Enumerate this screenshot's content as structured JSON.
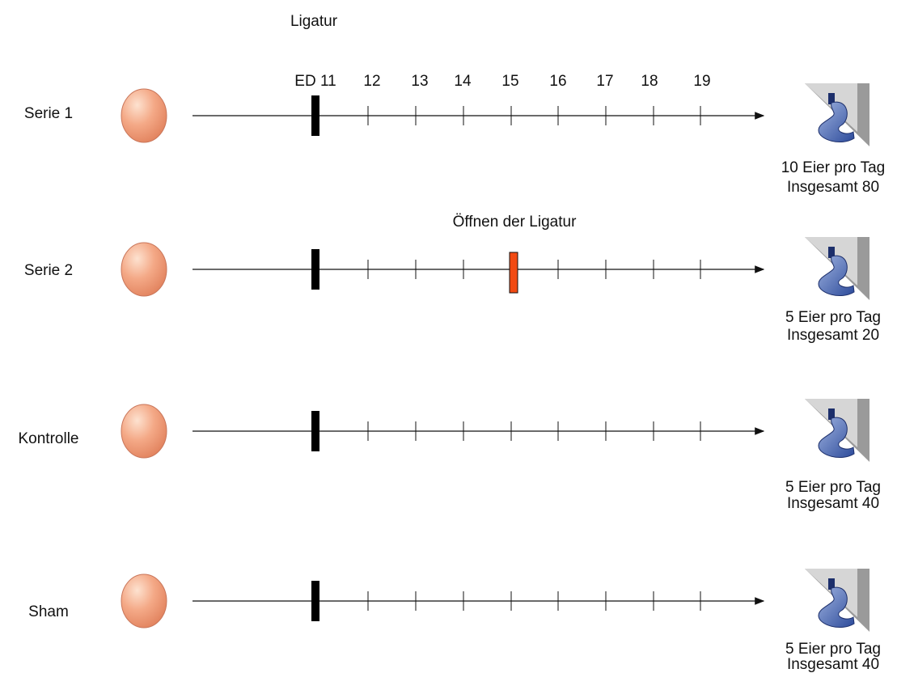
{
  "header": {
    "title": "Ligatur"
  },
  "days": [
    "ED 11",
    "12",
    "13",
    "14",
    "15",
    "16",
    "17",
    "18",
    "19"
  ],
  "rows": [
    {
      "label": "Serie 1",
      "notes": [
        "10 Eier pro Tag",
        "Insgesamt 80"
      ]
    },
    {
      "label": "Serie 2",
      "annotation": "Öffnen der Ligatur",
      "notes": [
        "5 Eier pro Tag",
        "Insgesamt 20"
      ]
    },
    {
      "label": "Kontrolle",
      "notes": [
        "5 Eier pro Tag",
        "Insgesamt 40"
      ]
    },
    {
      "label": "Sham",
      "notes": [
        "5 Eier pro Tag",
        "Insgesamt 40"
      ]
    }
  ]
}
